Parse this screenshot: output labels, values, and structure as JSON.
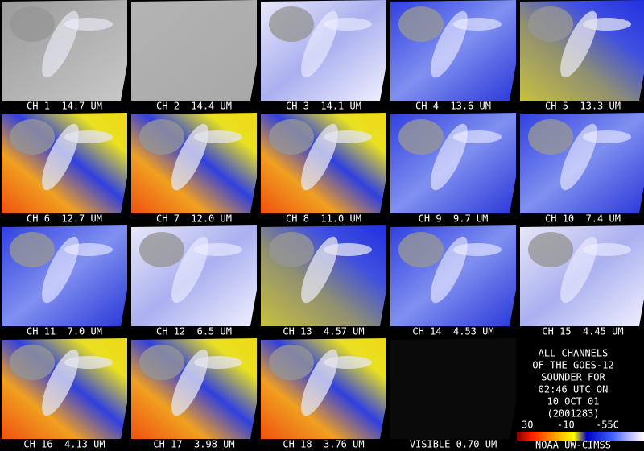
{
  "panels": [
    {
      "label": "CH 1  14.7 UM"
    },
    {
      "label": "CH 2  14.4 UM"
    },
    {
      "label": "CH 3  14.1 UM"
    },
    {
      "label": "CH 4  13.6 UM"
    },
    {
      "label": "CH 5  13.3 UM"
    },
    {
      "label": "CH 6  12.7 UM"
    },
    {
      "label": "CH 7  12.0 UM"
    },
    {
      "label": "CH 8  11.0 UM"
    },
    {
      "label": "CH 9  9.7 UM"
    },
    {
      "label": "CH 10  7.4 UM"
    },
    {
      "label": "CH 11  7.0 UM"
    },
    {
      "label": "CH 12  6.5 UM"
    },
    {
      "label": "CH 13  4.57 UM"
    },
    {
      "label": "CH 14  4.53 UM"
    },
    {
      "label": "CH 15  4.45 UM"
    },
    {
      "label": "CH 16  4.13 UM"
    },
    {
      "label": "CH 17  3.98 UM"
    },
    {
      "label": "CH 18  3.76 UM"
    },
    {
      "label": "VISIBLE 0.70 UM"
    }
  ],
  "caption": [
    "ALL CHANNELS",
    "OF THE GOES-12",
    "SOUNDER FOR",
    "02:46 UTC ON",
    "10 OCT 01",
    "(2001283)"
  ],
  "colorbar": {
    "labels": [
      "30",
      "-10",
      "-55C"
    ]
  },
  "credit": "NOAA UW-CIMSS"
}
